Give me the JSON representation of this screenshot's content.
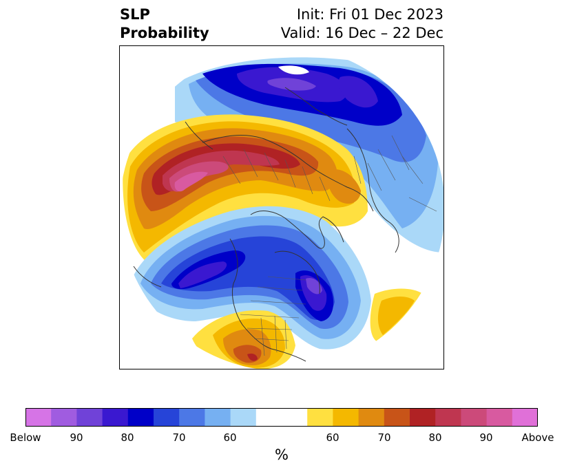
{
  "title": {
    "left_line1": "SLP",
    "left_line2": "Probability",
    "right_line1": "Init: Fri 01 Dec 2023",
    "right_line2": "Valid: 16 Dec – 22 Dec"
  },
  "colorbar": {
    "unit_label": "%",
    "colors": [
      "#d674e6",
      "#a05ce0",
      "#7042d8",
      "#3a18d0",
      "#0000c8",
      "#2644d8",
      "#4c78e6",
      "#76b0f2",
      "#aad8f8",
      "#ffffff",
      "#ffffff",
      "#ffe040",
      "#f4b800",
      "#e08a10",
      "#c85418",
      "#b02224",
      "#bf3650",
      "#cc4a7a",
      "#d85aa0",
      "#e070d8"
    ],
    "ticks": [
      "Below",
      "90",
      "80",
      "70",
      "60",
      "60",
      "70",
      "80",
      "90",
      "Above"
    ]
  },
  "map": {
    "projection": "north-polar-stereographic",
    "layers": [
      "SLP probability contours",
      "coastlines",
      "country borders",
      "US state borders"
    ],
    "regions": [
      {
        "name": "north-pacific-high",
        "category": "above",
        "peak": "90"
      },
      {
        "name": "northwest-europe-low",
        "category": "below",
        "peak": "80"
      },
      {
        "name": "scandinavia-low",
        "category": "below",
        "peak": "80"
      },
      {
        "name": "siberia-high",
        "category": "above",
        "peak": "70"
      },
      {
        "name": "gulf-of-alaska-low",
        "category": "below",
        "peak": "90"
      },
      {
        "name": "hudson-bay-low",
        "category": "below",
        "peak": "90"
      },
      {
        "name": "southwest-us-high",
        "category": "above",
        "peak": "80"
      },
      {
        "name": "northwest-africa-high",
        "category": "above",
        "peak": "60"
      }
    ]
  }
}
